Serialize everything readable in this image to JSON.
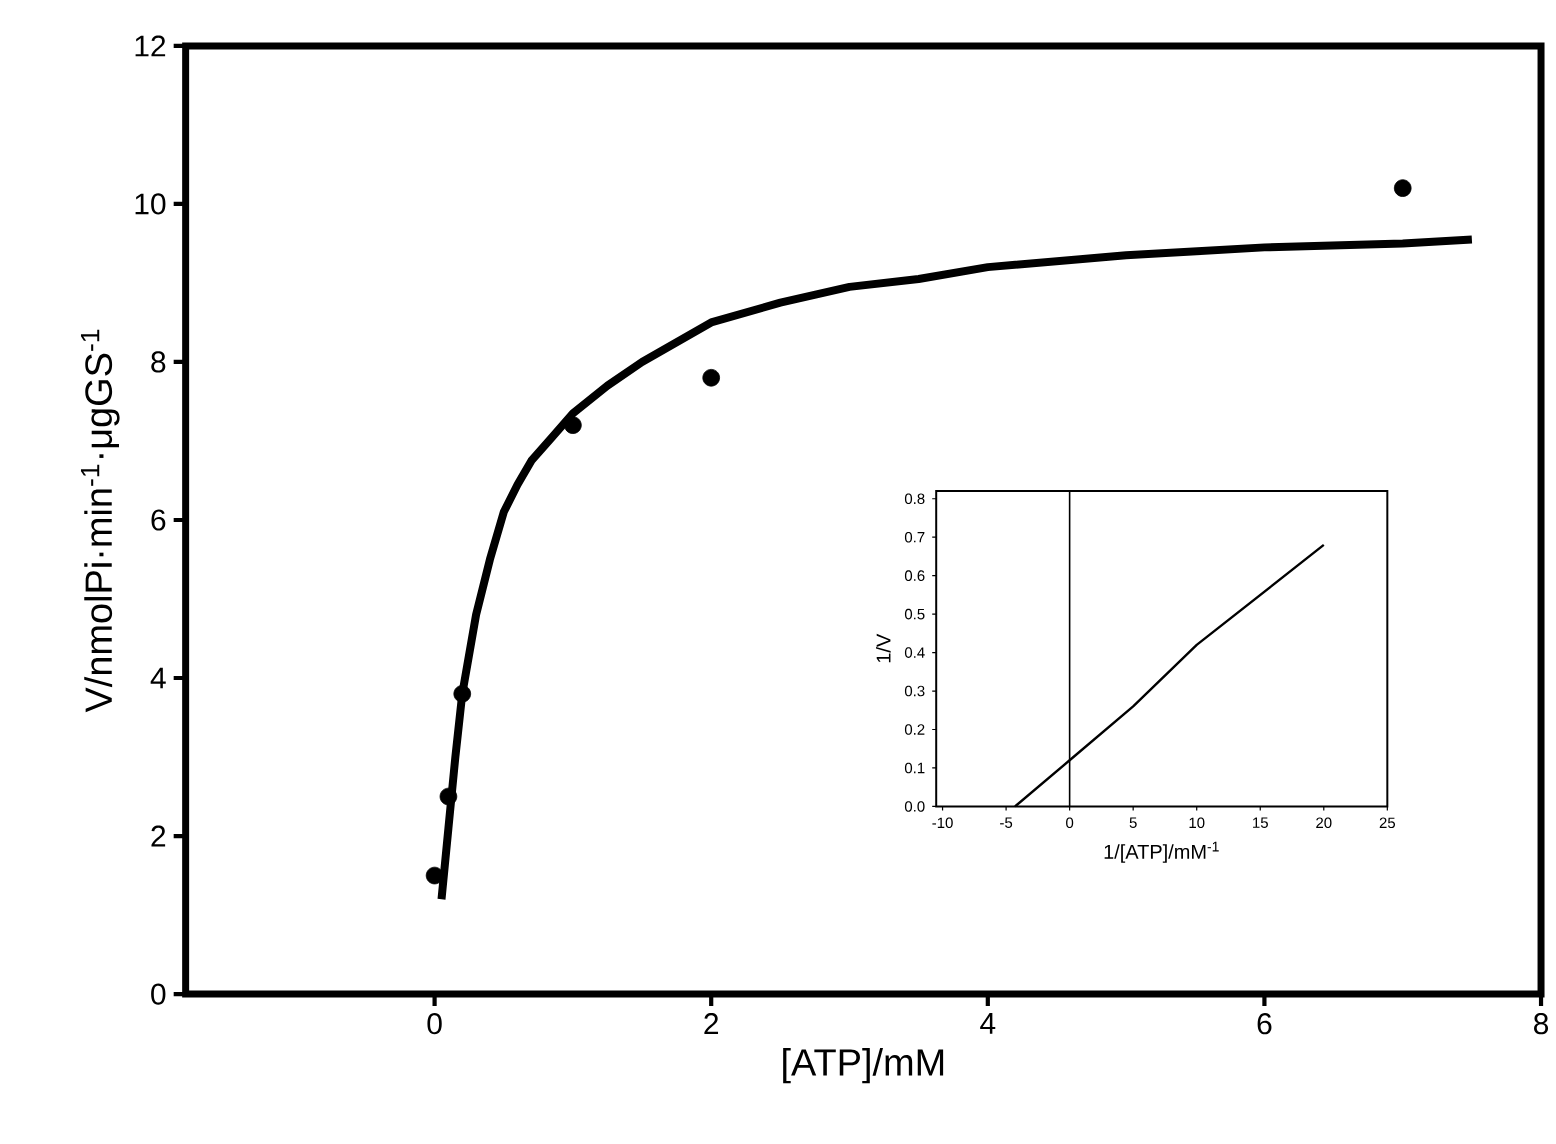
{
  "chart_data": [
    {
      "type": "scatter",
      "xlabel": "[ATP]/mM",
      "ylabel": "V/nmolPi·min$^{-1}$·μgGS$^{-1}$",
      "xlim": [
        -1.8,
        8
      ],
      "ylim": [
        0,
        12
      ],
      "xticks": [
        0,
        2,
        4,
        6,
        8
      ],
      "yticks": [
        0,
        2,
        4,
        6,
        8,
        10,
        12
      ],
      "series": [
        {
          "marker": "circle",
          "color": "#000000",
          "x": [
            0,
            0.1,
            0.2,
            1,
            2,
            7
          ],
          "values": [
            1.5,
            2.5,
            3.8,
            7.2,
            7.8,
            10.2
          ]
        },
        {
          "type": "line",
          "marker": "none",
          "color": "#000000",
          "x": [
            0.05,
            0.1,
            0.15,
            0.2,
            0.3,
            0.4,
            0.5,
            0.6,
            0.7,
            0.85,
            1,
            1.25,
            1.5,
            2,
            2.5,
            3,
            3.5,
            4,
            5,
            6,
            7,
            7.5
          ],
          "values": [
            1.2,
            2.1,
            3.0,
            3.8,
            4.8,
            5.5,
            6.1,
            6.45,
            6.75,
            7.05,
            7.35,
            7.7,
            8.0,
            8.5,
            8.75,
            8.95,
            9.05,
            9.2,
            9.35,
            9.45,
            9.5,
            9.55
          ]
        }
      ]
    },
    {
      "type": "line",
      "xlabel": "1/[ATP]/mM$^{-1}$",
      "ylabel": "1/V",
      "xlim": [
        -10.5,
        25
      ],
      "ylim": [
        0,
        0.82
      ],
      "xticks": [
        -10,
        -5,
        0,
        5,
        10,
        15,
        20,
        25
      ],
      "yticks": [
        {
          "value": 0,
          "label": "0.0"
        },
        0.1,
        0.2,
        0.3,
        0.4,
        0.5,
        0.6,
        0.7,
        0.8
      ],
      "ref_lines": [
        {
          "axis": "x",
          "value": 0,
          "color": "#000000"
        }
      ],
      "series": [
        {
          "marker": "none",
          "color": "#000000",
          "x": [
            -4.3,
            0,
            5,
            10,
            15,
            20
          ],
          "values": [
            0,
            0.12,
            0.26,
            0.42,
            0.55,
            0.68
          ]
        }
      ]
    }
  ]
}
